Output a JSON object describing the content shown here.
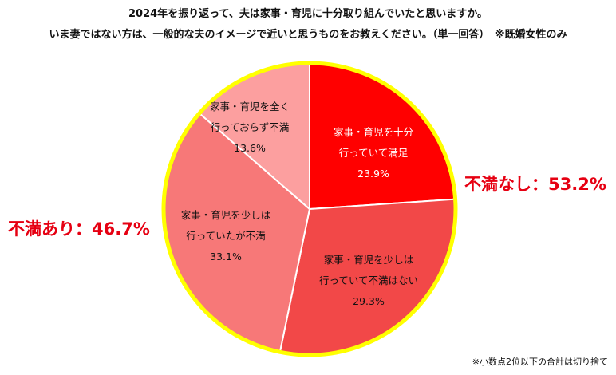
{
  "header": {
    "title_line1": "2024年を振り返って、夫は家事・育児に十分取り組んでいたと思いますか。",
    "title_line2": "いま妻ではない方は、一般的な夫のイメージで近いと思うものをお教えください。（単一回答）　※既婚女性のみ"
  },
  "callouts": {
    "right": "不満なし：53.2%",
    "left": "不満あり：46.7%",
    "color": "#e60012"
  },
  "footnote": "※小数点2位以下の合計は切り捨て",
  "chart_data": {
    "type": "pie",
    "start_angle_deg": 0,
    "direction": "clockwise",
    "border_color": "#ffff00",
    "slices": [
      {
        "label_lines": [
          "家事・育児を十分",
          "行っていて満足"
        ],
        "value": 23.9,
        "value_label": "23.9%",
        "color": "#ff0000",
        "text_color": "#ffffff"
      },
      {
        "label_lines": [
          "家事・育児を少しは",
          "行っていて不満はない"
        ],
        "value": 29.3,
        "value_label": "29.3%",
        "color": "#f24848",
        "text_color": "#111111"
      },
      {
        "label_lines": [
          "家事・育児を少しは",
          "行っていたが不満"
        ],
        "value": 33.1,
        "value_label": "33.1%",
        "color": "#f77878",
        "text_color": "#111111"
      },
      {
        "label_lines": [
          "家事・育児を全く",
          "行っておらず不満"
        ],
        "value": 13.6,
        "value_label": "13.6%",
        "color": "#fc9f9f",
        "text_color": "#111111"
      }
    ]
  }
}
